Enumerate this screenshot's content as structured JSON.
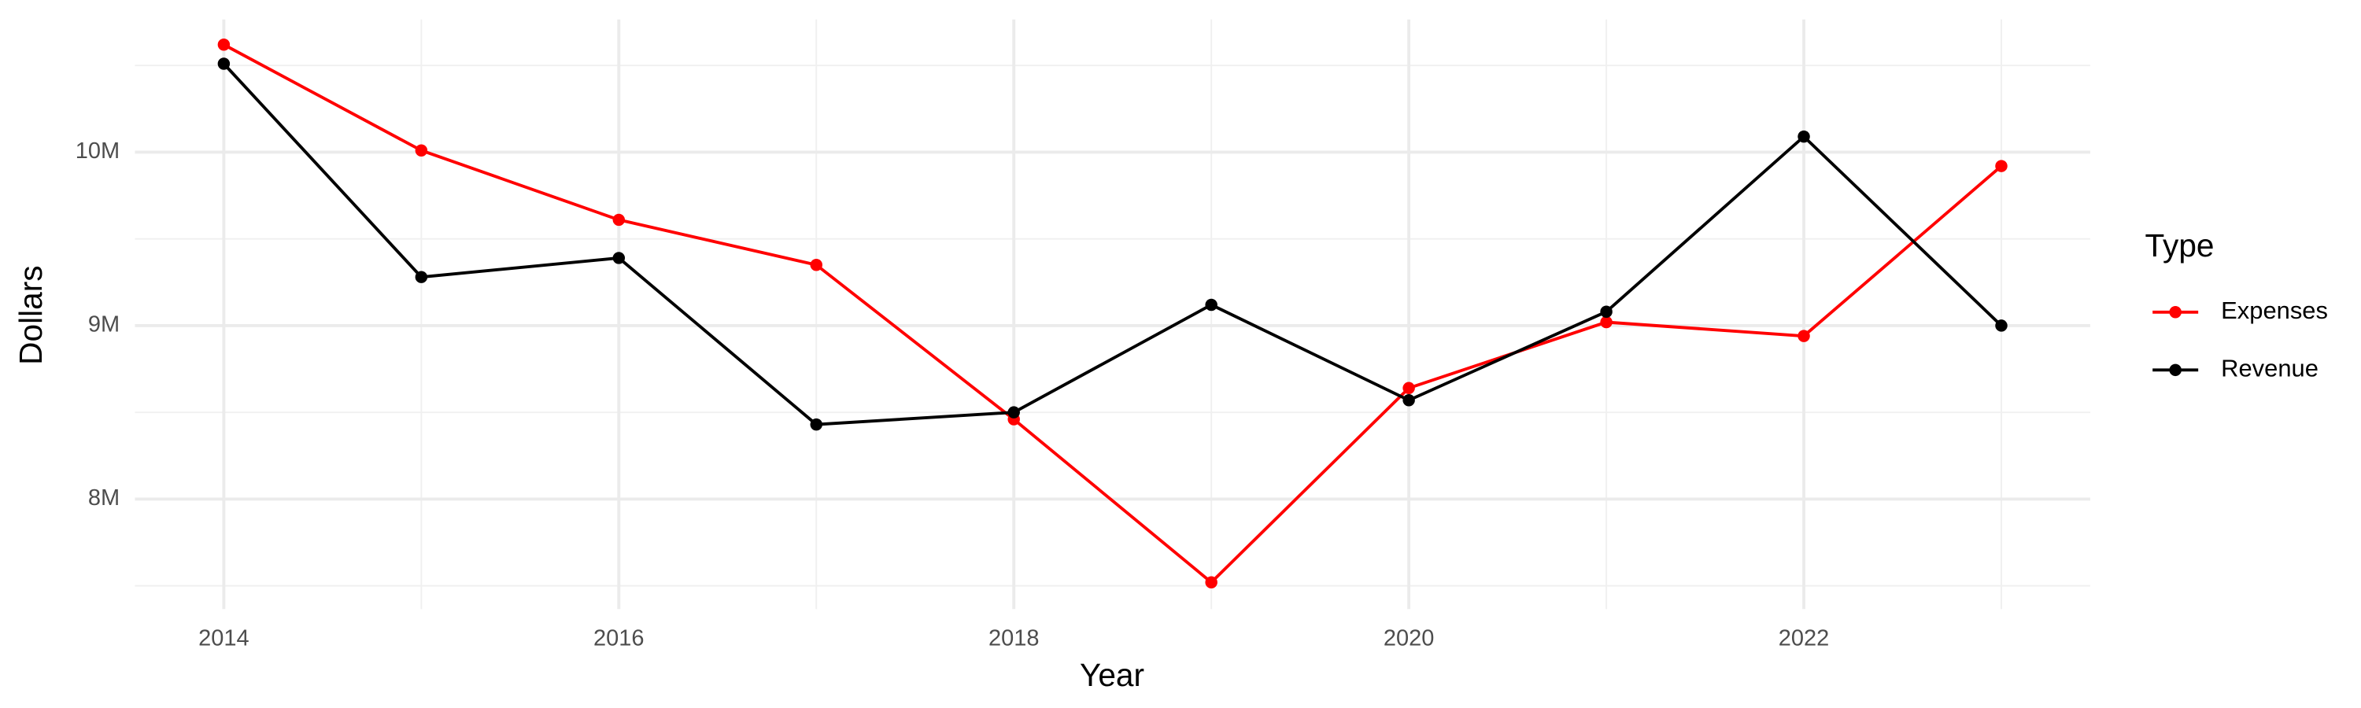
{
  "chart_data": {
    "type": "line",
    "x_label": "Year",
    "y_label": "Dollars",
    "legend_title": "Type",
    "x": [
      2014,
      2015,
      2016,
      2017,
      2018,
      2019,
      2020,
      2021,
      2022,
      2023
    ],
    "series": [
      {
        "name": "Expenses",
        "color": "#ff0000",
        "values": [
          10620000,
          10010000,
          9610000,
          9350000,
          8460000,
          7520000,
          8640000,
          9020000,
          8940000,
          9920000
        ]
      },
      {
        "name": "Revenue",
        "color": "#000000",
        "values": [
          10510000,
          9280000,
          9390000,
          8430000,
          8500000,
          9120000,
          8570000,
          9080000,
          10090000,
          9000000
        ]
      }
    ],
    "xlim": [
      2013.55,
      2023.45
    ],
    "xticks": [
      2014,
      2016,
      2018,
      2020,
      2022
    ],
    "ylim": [
      7366000,
      10765000
    ],
    "yticks": [
      {
        "value": 8000000,
        "label": "8M"
      },
      {
        "value": 9000000,
        "label": "9M"
      },
      {
        "value": 10000000,
        "label": "10M"
      }
    ],
    "grid": true,
    "legend": "right"
  }
}
